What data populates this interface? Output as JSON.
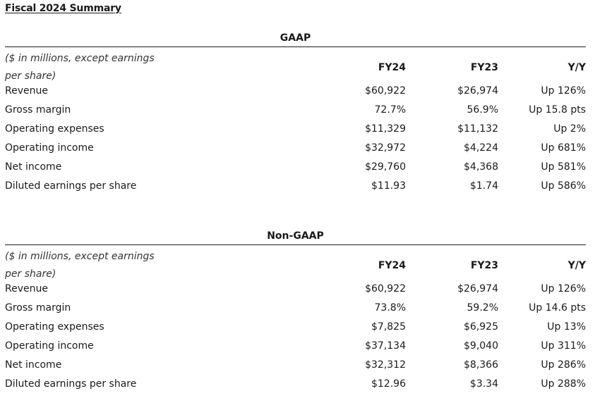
{
  "title": "Fiscal 2024 Summary",
  "unit_note": "($ in millions, except earnings per share)",
  "columns": {
    "fy24": "FY24",
    "fy23": "FY23",
    "yy": "Y/Y"
  },
  "gaap": {
    "heading": "GAAP",
    "rows": [
      {
        "label": "Revenue",
        "fy24": "$60,922",
        "fy23": "$26,974",
        "yy": "Up 126%"
      },
      {
        "label": "Gross margin",
        "fy24": "72.7%",
        "fy23": "56.9%",
        "yy": "Up 15.8 pts"
      },
      {
        "label": "Operating expenses",
        "fy24": "$11,329",
        "fy23": "$11,132",
        "yy": "Up 2%"
      },
      {
        "label": "Operating income",
        "fy24": "$32,972",
        "fy23": "$4,224",
        "yy": "Up 681%"
      },
      {
        "label": "Net income",
        "fy24": "$29,760",
        "fy23": "$4,368",
        "yy": "Up 581%"
      },
      {
        "label": "Diluted earnings per share",
        "fy24": "$11.93",
        "fy23": "$1.74",
        "yy": "Up 586%"
      }
    ]
  },
  "non_gaap": {
    "heading": "Non-GAAP",
    "rows": [
      {
        "label": "Revenue",
        "fy24": "$60,922",
        "fy23": "$26,974",
        "yy": "Up 126%"
      },
      {
        "label": "Gross margin",
        "fy24": "73.8%",
        "fy23": "59.2%",
        "yy": "Up 14.6 pts"
      },
      {
        "label": "Operating expenses",
        "fy24": "$7,825",
        "fy23": "$6,925",
        "yy": "Up 13%"
      },
      {
        "label": "Operating income",
        "fy24": "$37,134",
        "fy23": "$9,040",
        "yy": "Up 311%"
      },
      {
        "label": "Net income",
        "fy24": "$32,312",
        "fy23": "$8,366",
        "yy": "Up 286%"
      },
      {
        "label": "Diluted earnings per share",
        "fy24": "$12.96",
        "fy23": "$3.34",
        "yy": "Up 288%"
      }
    ]
  }
}
